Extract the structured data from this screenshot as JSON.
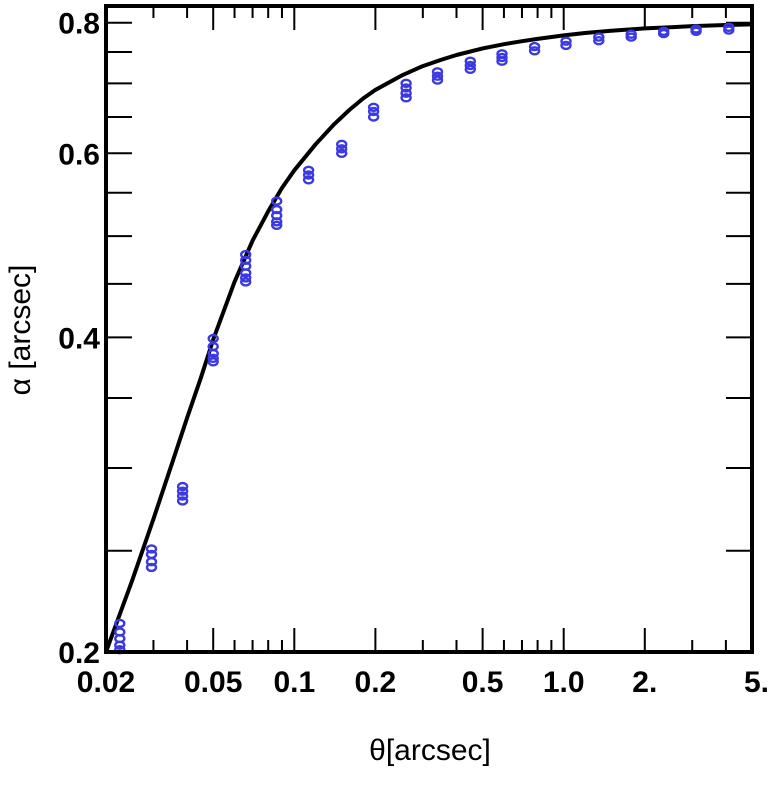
{
  "chart_data": {
    "type": "scatter",
    "title": "",
    "xlabel": "θ[arcsec]",
    "ylabel": "α [arcsec]",
    "xscale": "log",
    "yscale": "log",
    "xlim": [
      0.02,
      5.0
    ],
    "ylim": [
      0.2,
      0.83
    ],
    "grid": false,
    "x_ticks": [
      {
        "value": 0.02,
        "label": "0.02"
      },
      {
        "value": 0.05,
        "label": "0.05"
      },
      {
        "value": 0.1,
        "label": "0.1"
      },
      {
        "value": 0.2,
        "label": "0.2"
      },
      {
        "value": 0.5,
        "label": "0.5"
      },
      {
        "value": 1.0,
        "label": "1.0"
      },
      {
        "value": 2.0,
        "label": "2."
      },
      {
        "value": 5.0,
        "label": "5."
      }
    ],
    "y_ticks": [
      {
        "value": 0.2,
        "label": "0.2"
      },
      {
        "value": 0.4,
        "label": "0.4"
      },
      {
        "value": 0.6,
        "label": "0.6"
      },
      {
        "value": 0.8,
        "label": "0.8"
      }
    ],
    "colors": {
      "points": "#3a3ae0",
      "curve": "#000000"
    },
    "series": [
      {
        "kind": "points",
        "x": [
          0.0225,
          0.0225,
          0.0225,
          0.0225,
          0.0225,
          0.0295,
          0.0295,
          0.0295,
          0.0295,
          0.0385,
          0.0385,
          0.0385,
          0.0385,
          0.05,
          0.05,
          0.05,
          0.05,
          0.05,
          0.066,
          0.066,
          0.066,
          0.066,
          0.066,
          0.066,
          0.086,
          0.086,
          0.086,
          0.086,
          0.086,
          0.113,
          0.113,
          0.113,
          0.15,
          0.15,
          0.15,
          0.197,
          0.197,
          0.197,
          0.26,
          0.26,
          0.26,
          0.26,
          0.34,
          0.34,
          0.34,
          0.45,
          0.45,
          0.45,
          0.59,
          0.59,
          0.59,
          0.78,
          0.78,
          1.02,
          1.02,
          1.35,
          1.35,
          1.78,
          1.78,
          2.35,
          2.35,
          3.1,
          3.1,
          4.1,
          4.1
        ],
        "y": [
          0.213,
          0.209,
          0.206,
          0.203,
          0.201,
          0.251,
          0.248,
          0.244,
          0.241,
          0.288,
          0.285,
          0.282,
          0.279,
          0.399,
          0.392,
          0.386,
          0.382,
          0.379,
          0.48,
          0.474,
          0.468,
          0.461,
          0.456,
          0.452,
          0.54,
          0.53,
          0.523,
          0.516,
          0.512,
          0.578,
          0.572,
          0.566,
          0.612,
          0.606,
          0.6,
          0.664,
          0.658,
          0.65,
          0.7,
          0.693,
          0.685,
          0.678,
          0.718,
          0.711,
          0.705,
          0.735,
          0.728,
          0.722,
          0.747,
          0.741,
          0.735,
          0.759,
          0.752,
          0.768,
          0.761,
          0.775,
          0.769,
          0.78,
          0.775,
          0.785,
          0.781,
          0.789,
          0.785,
          0.792,
          0.787
        ]
      },
      {
        "kind": "curve",
        "x": [
          0.02,
          0.022,
          0.025,
          0.03,
          0.035,
          0.04,
          0.045,
          0.05,
          0.06,
          0.07,
          0.08,
          0.09,
          0.1,
          0.12,
          0.14,
          0.16,
          0.18,
          0.2,
          0.25,
          0.3,
          0.35,
          0.4,
          0.5,
          0.6,
          0.7,
          0.8,
          1.0,
          1.2,
          1.5,
          2.0,
          2.5,
          3.0,
          4.0,
          5.0
        ],
        "y": [
          0.2,
          0.214,
          0.234,
          0.268,
          0.302,
          0.335,
          0.366,
          0.398,
          0.452,
          0.495,
          0.528,
          0.556,
          0.578,
          0.612,
          0.639,
          0.66,
          0.677,
          0.69,
          0.712,
          0.727,
          0.737,
          0.745,
          0.756,
          0.763,
          0.768,
          0.772,
          0.778,
          0.782,
          0.786,
          0.79,
          0.792,
          0.794,
          0.796,
          0.797
        ]
      }
    ]
  }
}
